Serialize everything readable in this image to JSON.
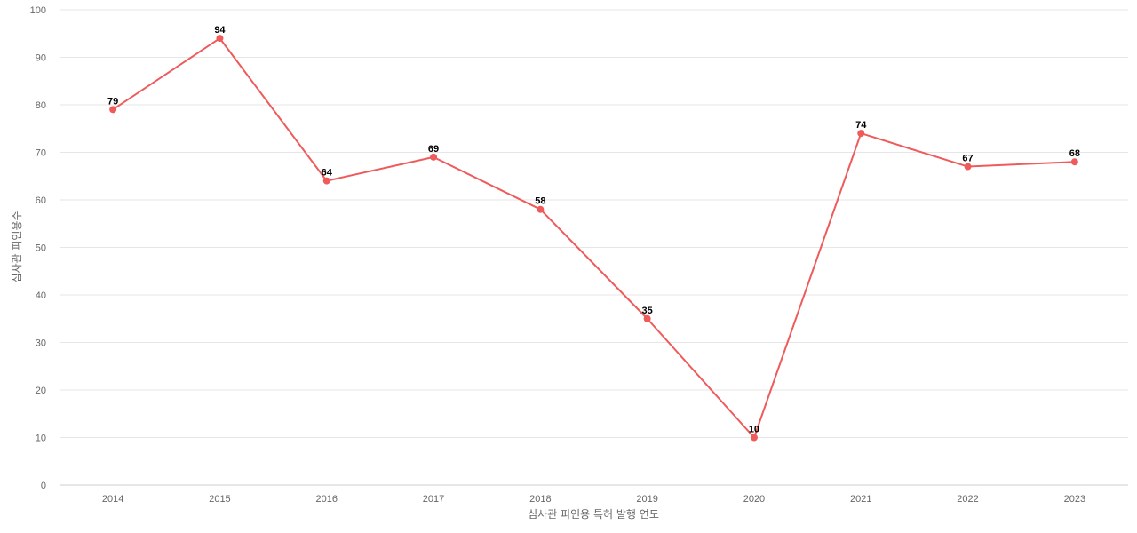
{
  "chart_data": {
    "type": "line",
    "title": "",
    "xlabel": "심사관 피인용 특허 발행 연도",
    "ylabel": "심사관 피인용수",
    "categories": [
      "2014",
      "2015",
      "2016",
      "2017",
      "2018",
      "2019",
      "2020",
      "2021",
      "2022",
      "2023"
    ],
    "series": [
      {
        "values": [
          79,
          94,
          64,
          69,
          58,
          35,
          10,
          74,
          67,
          68
        ]
      }
    ],
    "ylim": [
      0,
      100
    ],
    "yticks": [
      0,
      10,
      20,
      30,
      40,
      50,
      60,
      70,
      80,
      90,
      100
    ],
    "grid": true,
    "legend": "none",
    "data_labels": true
  },
  "colors": {
    "series": "#ef5a5a",
    "grid": "#e6e6e6",
    "axis_text": "#666666",
    "label_text": "#000000"
  }
}
